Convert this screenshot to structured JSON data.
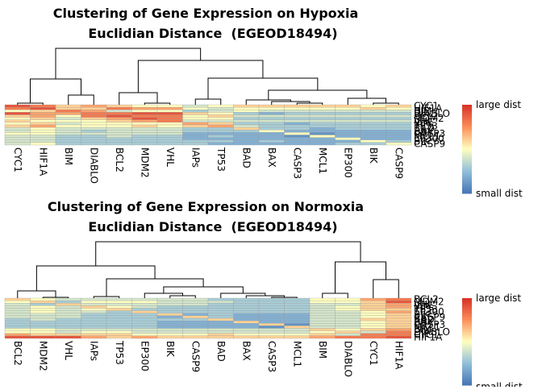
{
  "chart_data": [
    {
      "type": "heatmap",
      "title": "Clustering of Gene Expression on Hypoxia",
      "subtitle": "Euclidian Distance  (EGEOD18494)",
      "columns": [
        "CYC1",
        "HIF1A",
        "BIM",
        "DIABLO",
        "BCL2",
        "MDM2",
        "VHL",
        "IAPs",
        "TP53",
        "BAD",
        "BAX",
        "CASP3",
        "MCL1",
        "EP300",
        "BIK",
        "CASP9"
      ],
      "rows": [
        "CYC1",
        "HIF1A",
        "BIM",
        "DIABLO",
        "BCL2",
        "MDM2",
        "VHL",
        "IAPs",
        "TP53",
        "BAD",
        "BAX",
        "CASP3",
        "MCL1",
        "EP300",
        "BIK",
        "CASP9"
      ],
      "values": [
        [
          0.9,
          0.8,
          0.6,
          0.7,
          0.6,
          0.5,
          0.5,
          0.4,
          0.5,
          0.6,
          0.6,
          0.6,
          0.6,
          0.6,
          0.5,
          0.6
        ],
        [
          0.8,
          0.9,
          0.6,
          0.6,
          0.8,
          0.7,
          0.7,
          0.5,
          0.4,
          0.5,
          0.5,
          0.5,
          0.5,
          0.5,
          0.6,
          0.5
        ],
        [
          0.5,
          0.6,
          0.8,
          0.7,
          0.4,
          0.5,
          0.5,
          0.3,
          0.4,
          0.5,
          0.4,
          0.4,
          0.4,
          0.4,
          0.4,
          0.4
        ],
        [
          0.9,
          0.7,
          0.7,
          0.8,
          0.8,
          0.9,
          0.9,
          0.6,
          0.5,
          0.3,
          0.2,
          0.3,
          0.3,
          0.3,
          0.3,
          0.3
        ],
        [
          0.6,
          0.7,
          0.5,
          0.8,
          0.9,
          0.8,
          0.8,
          0.5,
          0.6,
          0.4,
          0.4,
          0.4,
          0.4,
          0.4,
          0.4,
          0.4
        ],
        [
          0.5,
          0.6,
          0.4,
          0.6,
          0.7,
          0.9,
          0.8,
          0.5,
          0.5,
          0.3,
          0.3,
          0.3,
          0.3,
          0.3,
          0.3,
          0.3
        ],
        [
          0.6,
          0.5,
          0.5,
          0.5,
          0.6,
          0.7,
          0.8,
          0.4,
          0.4,
          0.4,
          0.4,
          0.4,
          0.4,
          0.4,
          0.4,
          0.4
        ],
        [
          0.5,
          0.6,
          0.4,
          0.5,
          0.5,
          0.5,
          0.5,
          0.7,
          0.6,
          0.3,
          0.3,
          0.2,
          0.3,
          0.3,
          0.3,
          0.3
        ],
        [
          0.6,
          0.7,
          0.5,
          0.5,
          0.5,
          0.6,
          0.5,
          0.6,
          0.7,
          0.4,
          0.3,
          0.3,
          0.3,
          0.3,
          0.3,
          0.3
        ],
        [
          0.4,
          0.5,
          0.4,
          0.4,
          0.4,
          0.4,
          0.4,
          0.3,
          0.3,
          0.6,
          0.3,
          0.3,
          0.2,
          0.3,
          0.3,
          0.3
        ],
        [
          0.4,
          0.5,
          0.4,
          0.3,
          0.4,
          0.4,
          0.4,
          0.3,
          0.3,
          0.3,
          0.5,
          0.2,
          0.2,
          0.2,
          0.2,
          0.2
        ],
        [
          0.5,
          0.5,
          0.4,
          0.4,
          0.4,
          0.4,
          0.4,
          0.2,
          0.2,
          0.2,
          0.2,
          0.5,
          0.1,
          0.2,
          0.2,
          0.2
        ],
        [
          0.4,
          0.4,
          0.3,
          0.3,
          0.4,
          0.3,
          0.3,
          0.2,
          0.3,
          0.2,
          0.2,
          0.1,
          0.5,
          0.2,
          0.2,
          0.2
        ],
        [
          0.4,
          0.4,
          0.3,
          0.3,
          0.3,
          0.3,
          0.3,
          0.2,
          0.2,
          0.2,
          0.2,
          0.2,
          0.2,
          0.5,
          0.2,
          0.2
        ],
        [
          0.4,
          0.4,
          0.3,
          0.3,
          0.3,
          0.3,
          0.3,
          0.3,
          0.3,
          0.2,
          0.3,
          0.2,
          0.2,
          0.2,
          0.5,
          0.3
        ],
        [
          0.4,
          0.5,
          0.3,
          0.3,
          0.3,
          0.3,
          0.3,
          0.3,
          0.2,
          0.2,
          0.2,
          0.2,
          0.2,
          0.3,
          0.3,
          0.5
        ]
      ],
      "merge": [
        [
          -1,
          -2
        ],
        [
          -3,
          -4
        ],
        [
          1,
          2
        ],
        [
          -6,
          -7
        ],
        [
          -5,
          4
        ],
        [
          -8,
          -9
        ],
        [
          -12,
          -13
        ],
        [
          -11,
          7
        ],
        [
          -10,
          8
        ],
        [
          -15,
          -16
        ],
        [
          -14,
          10
        ],
        [
          9,
          11
        ],
        [
          6,
          12
        ],
        [
          5,
          13
        ],
        [
          3,
          14
        ]
      ],
      "height": [
        2,
        12,
        32,
        2,
        15,
        7,
        2,
        4,
        6,
        2,
        8,
        18,
        33,
        55,
        70
      ],
      "zlim": [
        0,
        1
      ],
      "colors": [
        "#4575b4",
        "#91bfdb",
        "#ffffbf",
        "#fc8d59",
        "#d73027"
      ],
      "colorbar_labels": [
        "large dist",
        "small dist"
      ]
    },
    {
      "type": "heatmap",
      "title": "Clustering of Gene Expression on Normoxia",
      "subtitle": "Euclidian Distance  (EGEOD18494)",
      "columns": [
        "BCL2",
        "MDM2",
        "VHL",
        "IAPs",
        "TP53",
        "EP300",
        "BIK",
        "CASP9",
        "BAD",
        "BAX",
        "CASP3",
        "MCL1",
        "BIM",
        "DIABLO",
        "CYC1",
        "HIF1A"
      ],
      "rows": [
        "BCL2",
        "MDM2",
        "VHL",
        "IAPs",
        "TP53",
        "EP300",
        "BIK",
        "CASP9",
        "BAD",
        "BAX",
        "CASP3",
        "MCL1",
        "BIM",
        "DIABLO",
        "CYC1",
        "HIF1A"
      ],
      "values": [
        [
          0.6,
          0.5,
          0.4,
          0.4,
          0.4,
          0.4,
          0.4,
          0.4,
          0.3,
          0.3,
          0.3,
          0.3,
          0.5,
          0.5,
          0.7,
          0.8
        ],
        [
          0.5,
          0.6,
          0.3,
          0.5,
          0.5,
          0.5,
          0.4,
          0.4,
          0.4,
          0.3,
          0.3,
          0.3,
          0.5,
          0.5,
          0.6,
          0.9
        ],
        [
          0.4,
          0.3,
          0.6,
          0.4,
          0.4,
          0.4,
          0.4,
          0.4,
          0.3,
          0.3,
          0.3,
          0.3,
          0.4,
          0.4,
          0.6,
          0.7
        ],
        [
          0.4,
          0.5,
          0.4,
          0.6,
          0.5,
          0.4,
          0.3,
          0.3,
          0.3,
          0.3,
          0.3,
          0.3,
          0.4,
          0.5,
          0.6,
          0.7
        ],
        [
          0.4,
          0.5,
          0.4,
          0.5,
          0.6,
          0.3,
          0.3,
          0.3,
          0.3,
          0.3,
          0.3,
          0.3,
          0.4,
          0.5,
          0.6,
          0.6
        ],
        [
          0.4,
          0.5,
          0.4,
          0.4,
          0.3,
          0.6,
          0.3,
          0.3,
          0.3,
          0.3,
          0.3,
          0.3,
          0.4,
          0.4,
          0.5,
          0.7
        ],
        [
          0.4,
          0.4,
          0.4,
          0.3,
          0.3,
          0.3,
          0.6,
          0.2,
          0.3,
          0.2,
          0.2,
          0.2,
          0.4,
          0.4,
          0.5,
          0.6
        ],
        [
          0.4,
          0.4,
          0.4,
          0.3,
          0.3,
          0.3,
          0.2,
          0.6,
          0.3,
          0.2,
          0.2,
          0.2,
          0.4,
          0.4,
          0.5,
          0.6
        ],
        [
          0.3,
          0.4,
          0.3,
          0.3,
          0.3,
          0.3,
          0.3,
          0.3,
          0.6,
          0.2,
          0.2,
          0.2,
          0.4,
          0.4,
          0.6,
          0.6
        ],
        [
          0.3,
          0.3,
          0.3,
          0.3,
          0.3,
          0.3,
          0.2,
          0.2,
          0.2,
          0.6,
          0.2,
          0.2,
          0.4,
          0.4,
          0.5,
          0.6
        ],
        [
          0.3,
          0.3,
          0.3,
          0.3,
          0.3,
          0.3,
          0.2,
          0.2,
          0.2,
          0.2,
          0.6,
          0.1,
          0.4,
          0.4,
          0.5,
          0.6
        ],
        [
          0.3,
          0.3,
          0.3,
          0.3,
          0.3,
          0.3,
          0.2,
          0.2,
          0.2,
          0.2,
          0.1,
          0.6,
          0.4,
          0.4,
          0.5,
          0.6
        ],
        [
          0.5,
          0.5,
          0.4,
          0.4,
          0.4,
          0.4,
          0.4,
          0.4,
          0.4,
          0.4,
          0.4,
          0.4,
          0.6,
          0.5,
          0.6,
          0.7
        ],
        [
          0.5,
          0.5,
          0.4,
          0.5,
          0.5,
          0.4,
          0.4,
          0.4,
          0.4,
          0.4,
          0.4,
          0.4,
          0.5,
          0.6,
          0.4,
          0.8
        ],
        [
          0.7,
          0.6,
          0.6,
          0.6,
          0.6,
          0.5,
          0.5,
          0.5,
          0.6,
          0.5,
          0.5,
          0.5,
          0.6,
          0.4,
          0.8,
          0.8
        ],
        [
          0.9,
          0.9,
          0.9,
          0.7,
          0.6,
          0.7,
          0.6,
          0.6,
          0.6,
          0.6,
          0.6,
          0.6,
          0.7,
          0.8,
          0.8,
          0.9
        ]
      ],
      "merge": [
        [
          -2,
          -3
        ],
        [
          -1,
          1
        ],
        [
          -4,
          -5
        ],
        [
          -7,
          -8
        ],
        [
          -6,
          4
        ],
        [
          -11,
          -12
        ],
        [
          -10,
          6
        ],
        [
          -9,
          7
        ],
        [
          5,
          8
        ],
        [
          3,
          9
        ],
        [
          2,
          10
        ],
        [
          -13,
          -14
        ],
        [
          -15,
          -16
        ],
        [
          12,
          13
        ],
        [
          11,
          14
        ]
      ],
      "height": [
        1,
        9,
        2,
        3,
        6,
        1,
        3,
        6,
        14,
        24,
        40,
        6,
        23,
        45,
        70
      ],
      "zlim": [
        0,
        1
      ],
      "colors": [
        "#4575b4",
        "#91bfdb",
        "#ffffbf",
        "#fc8d59",
        "#d73027"
      ],
      "colorbar_labels": [
        "large dist",
        "small dist"
      ]
    }
  ]
}
